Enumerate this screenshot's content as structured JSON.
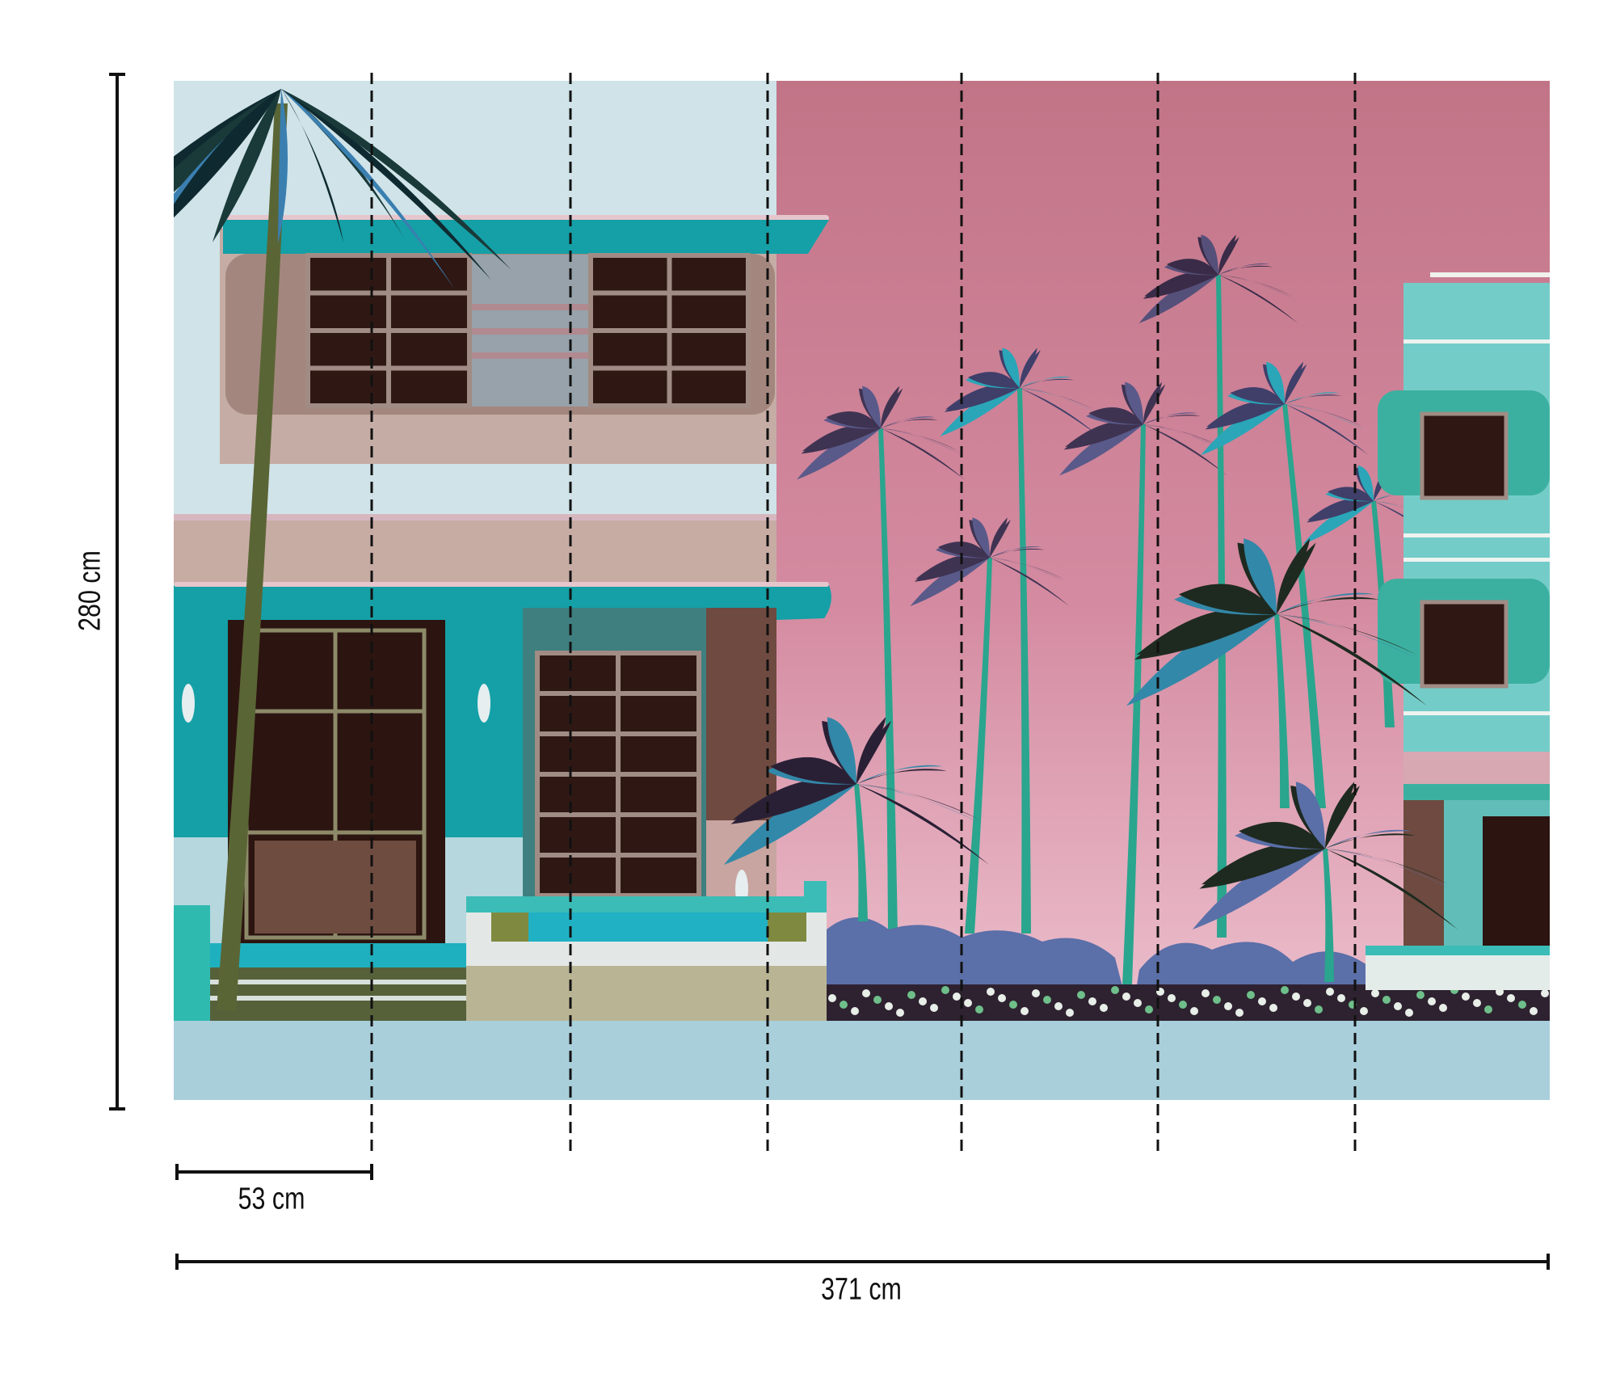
{
  "dimensions": {
    "height_label": "280 cm",
    "panel_width_label": "53 cm",
    "total_width_label": "371 cm",
    "panel_count": 7
  },
  "colors": {
    "sky_left": "#cfe3e8",
    "sky_pink_top": "#c27487",
    "sky_pink_bottom": "#e9b8c8",
    "teal": "#14a0a6",
    "taupe": "#c5aca5",
    "street": "#a9cfdb",
    "dark_window": "#2f1814",
    "palm_purple": "#3f3352",
    "palm_teal": "#2aa6b8",
    "dimension_line": "#111111"
  }
}
